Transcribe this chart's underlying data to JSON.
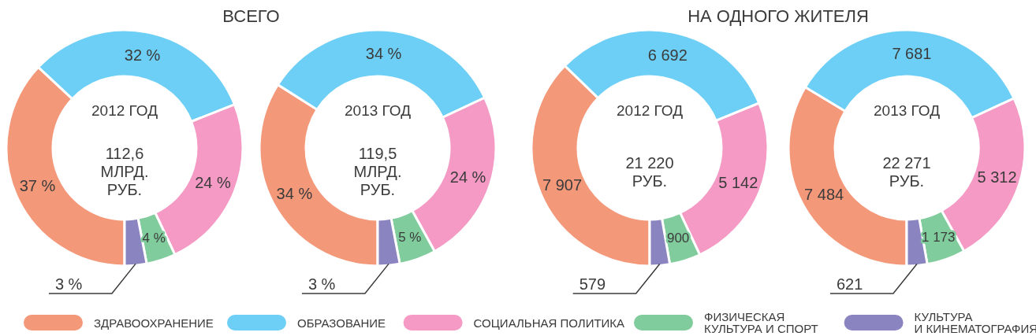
{
  "chart_data": [
    {
      "type": "donut",
      "title": "ВСЕГО",
      "subtitle": "2012 ГОД",
      "annotations": [
        "112,6\nМЛРД.\nРУБ."
      ],
      "legend": "bottom",
      "categories": [
        "ЗДРАВООХРАНЕНИЕ",
        "ОБРАЗОВАНИЕ",
        "СОЦИАЛЬНАЯ ПОЛИТИКА",
        "ФИЗИЧЕСКАЯ КУЛЬТУРА И СПОРТ",
        "КУЛЬТУРА И КИНЕМАТОГРАФИЯ"
      ],
      "values": [
        37,
        32,
        24,
        4,
        3
      ],
      "value_labels": [
        "37 %",
        "32 %",
        "24 %",
        "4 %",
        "3 %"
      ],
      "colors": [
        "#f4987a",
        "#6dcff6",
        "#f49ac4",
        "#80cc9c",
        "#8a84c0"
      ]
    },
    {
      "type": "donut",
      "subtitle": "2013 ГОД",
      "annotations": [
        "119,5\nМЛРД.\nРУБ."
      ],
      "values": [
        34,
        34,
        24,
        5,
        3
      ],
      "value_labels": [
        "34 %",
        "34 %",
        "24 %",
        "5 %",
        "3 %"
      ],
      "colors": [
        "#f4987a",
        "#6dcff6",
        "#f49ac4",
        "#80cc9c",
        "#8a84c0"
      ]
    },
    {
      "type": "donut",
      "title": "НА ОДНОГО ЖИТЕЛЯ",
      "subtitle": "2012 ГОД",
      "annotations": [
        "21 220\nРУБ."
      ],
      "values": [
        7907,
        6692,
        5142,
        900,
        579
      ],
      "value_labels": [
        "7 907",
        "6 692",
        "5 142",
        "900",
        "579"
      ],
      "colors": [
        "#f4987a",
        "#6dcff6",
        "#f49ac4",
        "#80cc9c",
        "#8a84c0"
      ]
    },
    {
      "type": "donut",
      "subtitle": "2013 ГОД",
      "annotations": [
        "22 271\nРУБ."
      ],
      "values": [
        7484,
        7681,
        5312,
        1173,
        621
      ],
      "value_labels": [
        "7 484",
        "7 681",
        "5 312",
        "1 173",
        "621"
      ],
      "colors": [
        "#f4987a",
        "#6dcff6",
        "#f49ac4",
        "#80cc9c",
        "#8a84c0"
      ]
    }
  ]
}
